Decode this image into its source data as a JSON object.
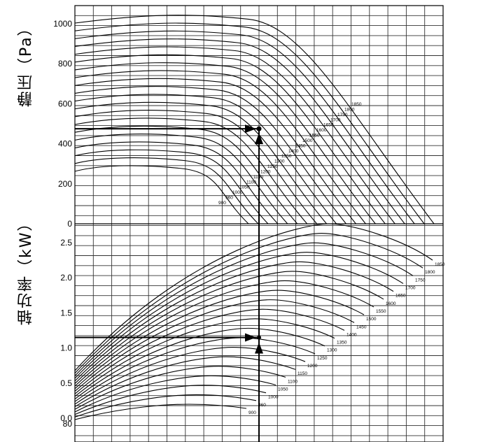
{
  "chart_data": [
    {
      "type": "line",
      "ylabel": "静压（Pa）",
      "ylim": [
        0,
        1050
      ],
      "yticks": [
        0,
        200,
        400,
        600,
        800,
        1000
      ],
      "curve_labels": [
        "900",
        "960",
        "1000",
        "1050",
        "1100",
        "1150",
        "1200",
        "1250",
        "1300",
        "1350",
        "1400",
        "1450",
        "1500",
        "1550",
        "1600",
        "1650",
        "1700",
        "1750",
        "1800",
        "1850"
      ],
      "operating_point": {
        "y": 475
      },
      "grid": true
    },
    {
      "type": "line",
      "ylabel": "轴功率（kW）",
      "ylim": [
        0,
        2.65
      ],
      "yticks": [
        "0.0",
        "0.5",
        "1.0",
        "1.5",
        "2.0",
        "2.5"
      ],
      "curve_labels": [
        "900",
        "960",
        "1000",
        "1050",
        "1100",
        "1150",
        "1200",
        "1250",
        "1300",
        "1350",
        "1400",
        "1450",
        "1500",
        "1550",
        "1600",
        "1650",
        "1700",
        "1750",
        "1800",
        "1850"
      ],
      "operating_point": {
        "y": 1.15
      },
      "grid": true
    }
  ],
  "bottom_tick": "80"
}
